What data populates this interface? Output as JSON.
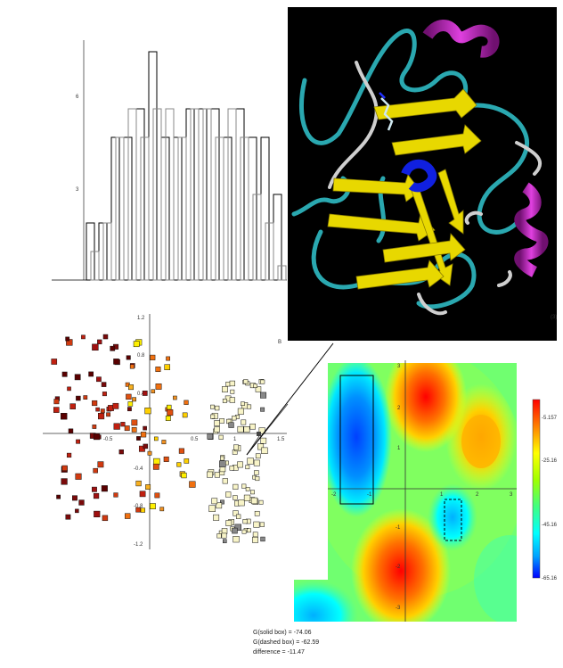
{
  "figures": {
    "histogram": {
      "y_tick_labels": [
        "6",
        "3"
      ],
      "dark_bars": [
        2,
        2,
        5,
        5,
        6,
        8,
        5,
        5,
        6,
        6,
        6,
        5,
        6,
        5,
        5,
        3
      ],
      "light_bars": [
        1,
        2,
        5,
        6,
        5,
        6,
        6,
        5,
        6,
        6,
        5,
        6,
        5,
        3,
        2,
        0.5
      ]
    },
    "scatter": {
      "x_tick_labels": [
        "-0.5",
        "0.5",
        "1",
        "1.5"
      ],
      "y_tick_labels": [
        "1.2",
        "0.8",
        "0.4",
        "-0.4",
        "-0.8",
        "-1.2"
      ],
      "corner_label": "B"
    },
    "protein": {
      "edge_label": "(3)"
    },
    "heatmap": {
      "x_tick_labels": [
        "-2",
        "-1",
        "1",
        "2",
        "3"
      ],
      "y_tick_labels": [
        "3",
        "2",
        "1",
        "-1",
        "-2",
        "-3"
      ],
      "colorbar_labels": [
        "-5.157",
        "-25.16",
        "-45.16",
        "-65.16"
      ],
      "colorscale": [
        "#0000ff",
        "#00a0ff",
        "#00ffff",
        "#40ff80",
        "#b0ff00",
        "#ffff00",
        "#ff9000",
        "#ff0000"
      ]
    }
  },
  "annotations": {
    "solid": "G(solid box) = -74.06",
    "dashed": "G(dashed box) = -62.59",
    "difference": "difference = -11.47"
  },
  "chart_data": [
    {
      "type": "bar",
      "series": [
        {
          "values": [
            2,
            2,
            5,
            5,
            6,
            8,
            5,
            5,
            6,
            6,
            6,
            5,
            6,
            5,
            5,
            3
          ]
        },
        {
          "values": [
            1,
            2,
            5,
            6,
            5,
            6,
            6,
            5,
            6,
            6,
            5,
            6,
            5,
            3,
            2,
            0.5
          ]
        }
      ],
      "y_tick_labels": [
        "3",
        "6"
      ]
    },
    {
      "type": "scatter",
      "xlim": [
        -1.6,
        1.8
      ],
      "ylim": [
        -1.2,
        1.2
      ],
      "x_ticks": [
        -0.5,
        0.5,
        1,
        1.5
      ],
      "y_ticks": [
        1.2,
        0.8,
        0.4,
        -0.4,
        -0.8,
        -1.2
      ],
      "series": [
        {
          "values": "approx. 250 points, dark red to yellow clusters on the left, pale yellow cluster near x=1"
        }
      ]
    },
    {
      "type": "heatmap",
      "xlim": [
        -2,
        3
      ],
      "ylim": [
        -3,
        3
      ],
      "x_ticks": [
        -2,
        -1,
        1,
        2,
        3
      ],
      "y_ticks": [
        3,
        2,
        1,
        -1,
        -2,
        -3
      ],
      "colorbar": [
        -5.157,
        -25.16,
        -45.16,
        -65.16
      ],
      "boxes": [
        {
          "style": "solid",
          "x": [
            -1.7,
            -0.8
          ],
          "y": [
            -0.4,
            2.8
          ]
        },
        {
          "style": "dashed",
          "x": [
            1.0,
            1.5
          ],
          "y": [
            -1.6,
            -0.3
          ]
        }
      ]
    }
  ]
}
